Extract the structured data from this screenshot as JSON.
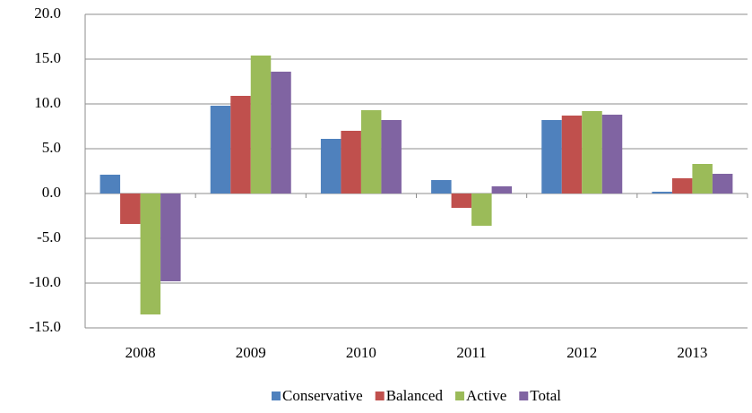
{
  "chart_data": {
    "type": "bar",
    "categories": [
      "2008",
      "2009",
      "2010",
      "2011",
      "2012",
      "2013"
    ],
    "series": [
      {
        "name": "Conservative",
        "color": "#4f81bd",
        "values": [
          2.1,
          9.8,
          6.1,
          1.5,
          8.2,
          0.2
        ]
      },
      {
        "name": "Balanced",
        "color": "#c0504d",
        "values": [
          -3.4,
          10.9,
          7.0,
          -1.6,
          8.7,
          1.7
        ]
      },
      {
        "name": "Active",
        "color": "#9bbb59",
        "values": [
          -13.5,
          15.4,
          9.3,
          -3.6,
          9.2,
          3.3
        ]
      },
      {
        "name": "Total",
        "color": "#8064a2",
        "values": [
          -9.8,
          13.6,
          8.2,
          0.8,
          8.8,
          2.2
        ]
      }
    ],
    "ylim": [
      -15,
      20
    ],
    "yticks": [
      {
        "value": -15,
        "label": "-15.0"
      },
      {
        "value": -10,
        "label": "-10.0"
      },
      {
        "value": -5,
        "label": "-5.0"
      },
      {
        "value": 0,
        "label": "0.0"
      },
      {
        "value": 5,
        "label": "5.0"
      },
      {
        "value": 10,
        "label": "10.0"
      },
      {
        "value": 15,
        "label": "15.0"
      },
      {
        "value": 20,
        "label": "20.0"
      }
    ],
    "grid": true,
    "negative_tick_color": "#ff0000",
    "legend": "bottom"
  }
}
